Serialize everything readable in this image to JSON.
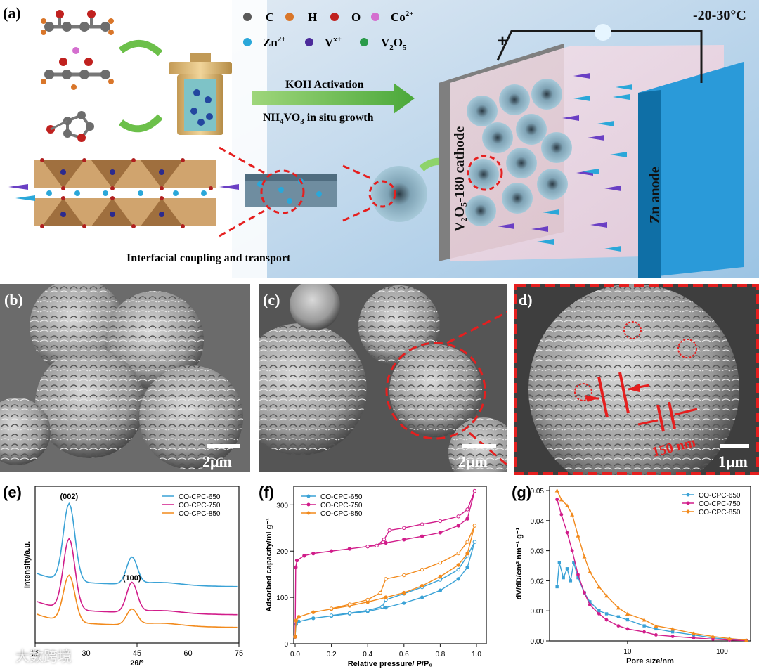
{
  "panel_a": {
    "label": "(a)",
    "temperature": "-20-30°C",
    "legend": {
      "C": "C",
      "H": "H",
      "O": "O",
      "Co": "Co",
      "Co_sup": "2+",
      "Zn": "Zn",
      "Zn_sup": "2+",
      "V": "V",
      "V_sup": "x+",
      "V2O5_a": "V",
      "V2O5_sub1": "2",
      "V2O5_b": "O",
      "V2O5_sub2": "5"
    },
    "arrow_text_1": "KOH Activation",
    "arrow_text_2a": "NH",
    "arrow_text_2_sub1": "4",
    "arrow_text_2b": "VO",
    "arrow_text_2_sub2": "3",
    "arrow_text_2c": " in situ growth",
    "cathode_label": "V₂O₅-180 cathode",
    "anode_label": "Zn anode",
    "plus_sign": "+",
    "caption": "Interfacial coupling and transport",
    "colors": {
      "C": "#5a5a5a",
      "H": "#d9762a",
      "O": "#c0211f",
      "Co": "#d46fcf",
      "Zn": "#2aa7d9",
      "V": "#4b2a9a",
      "V2O5": "#2a9a4a"
    }
  },
  "panel_b": {
    "label": "(b)",
    "scale": "2μm"
  },
  "panel_c": {
    "label": "(c)",
    "scale": "2μm"
  },
  "panel_d": {
    "label": "d)",
    "scale": "1μm",
    "measure": "150 nm"
  },
  "chart_data": [
    {
      "panel": "(e)",
      "type": "line",
      "xlabel": "2θ/°",
      "ylabel": "Intensity/a.u.",
      "xlim": [
        15,
        75
      ],
      "xticks": [
        "15",
        "30",
        "45",
        "60",
        "75"
      ],
      "annotations": [
        "(002)",
        "(100)"
      ],
      "legend_position": "top-right",
      "series": [
        {
          "name": "CO-CPC-650",
          "color": "#3aa2d6"
        },
        {
          "name": "CO-CPC-750",
          "color": "#d11c8a"
        },
        {
          "name": "CO-CPC-850",
          "color": "#f28a1c"
        }
      ],
      "peaks": {
        "002_x": 25,
        "100_x": 43.5
      }
    },
    {
      "panel": "(f)",
      "type": "line",
      "xlabel": "Relative pressure/ P/P₀",
      "ylabel": "Adsorbed capacity/ml g⁻¹",
      "xlim": [
        0,
        1.0
      ],
      "ylim": [
        0,
        340
      ],
      "xticks": [
        "0.0",
        "0.2",
        "0.4",
        "0.6",
        "0.8",
        "1.0"
      ],
      "yticks": [
        "0",
        "100",
        "200",
        "300"
      ],
      "legend_position": "top-left",
      "series": [
        {
          "name": "CO-CPC-650",
          "color": "#3aa2d6",
          "adsorption": [
            [
              0,
              15
            ],
            [
              0.005,
              42
            ],
            [
              0.02,
              48
            ],
            [
              0.1,
              55
            ],
            [
              0.2,
              60
            ],
            [
              0.3,
              65
            ],
            [
              0.4,
              70
            ],
            [
              0.5,
              78
            ],
            [
              0.6,
              88
            ],
            [
              0.7,
              100
            ],
            [
              0.8,
              115
            ],
            [
              0.9,
              140
            ],
            [
              0.95,
              165
            ],
            [
              0.99,
              220
            ]
          ],
          "desorption": [
            [
              0.99,
              220
            ],
            [
              0.95,
              190
            ],
            [
              0.9,
              160
            ],
            [
              0.8,
              138
            ],
            [
              0.7,
              122
            ],
            [
              0.6,
              108
            ],
            [
              0.5,
              95
            ],
            [
              0.48,
              80
            ],
            [
              0.4,
              72
            ],
            [
              0.3,
              66
            ],
            [
              0.2,
              61
            ]
          ]
        },
        {
          "name": "CO-CPC-750",
          "color": "#d11c8a",
          "adsorption": [
            [
              0,
              15
            ],
            [
              0.003,
              165
            ],
            [
              0.01,
              180
            ],
            [
              0.05,
              190
            ],
            [
              0.1,
              195
            ],
            [
              0.2,
              200
            ],
            [
              0.3,
              205
            ],
            [
              0.4,
              210
            ],
            [
              0.5,
              218
            ],
            [
              0.6,
              225
            ],
            [
              0.7,
              232
            ],
            [
              0.8,
              240
            ],
            [
              0.9,
              255
            ],
            [
              0.95,
              270
            ],
            [
              0.99,
              330
            ]
          ],
          "desorption": [
            [
              0.99,
              330
            ],
            [
              0.95,
              290
            ],
            [
              0.9,
              275
            ],
            [
              0.8,
              265
            ],
            [
              0.7,
              258
            ],
            [
              0.6,
              250
            ],
            [
              0.52,
              245
            ],
            [
              0.49,
              225
            ],
            [
              0.45,
              212
            ],
            [
              0.4,
              210
            ]
          ]
        },
        {
          "name": "CO-CPC-850",
          "color": "#f28a1c",
          "adsorption": [
            [
              0,
              15
            ],
            [
              0.005,
              50
            ],
            [
              0.02,
              58
            ],
            [
              0.1,
              68
            ],
            [
              0.2,
              75
            ],
            [
              0.3,
              82
            ],
            [
              0.4,
              90
            ],
            [
              0.5,
              100
            ],
            [
              0.6,
              110
            ],
            [
              0.7,
              125
            ],
            [
              0.8,
              145
            ],
            [
              0.9,
              170
            ],
            [
              0.95,
              195
            ],
            [
              0.99,
              255
            ]
          ],
          "desorption": [
            [
              0.99,
              255
            ],
            [
              0.95,
              220
            ],
            [
              0.9,
              195
            ],
            [
              0.8,
              175
            ],
            [
              0.7,
              160
            ],
            [
              0.6,
              148
            ],
            [
              0.5,
              140
            ],
            [
              0.47,
              110
            ],
            [
              0.4,
              95
            ],
            [
              0.3,
              85
            ],
            [
              0.2,
              76
            ]
          ]
        }
      ]
    },
    {
      "panel": "(g)",
      "type": "line",
      "xscale": "log",
      "xlabel": "Pore size/nm",
      "ylabel": "dV/dD/cm³ nm⁻¹ g⁻¹",
      "xlim": [
        1.5,
        200
      ],
      "ylim": [
        0,
        0.05
      ],
      "xticks": [
        "10",
        "100"
      ],
      "yticks": [
        "0.00",
        "0.01",
        "0.02",
        "0.03",
        "0.04",
        "0.05"
      ],
      "legend_position": "top-right",
      "series": [
        {
          "name": "CO-CPC-650",
          "color": "#3aa2d6",
          "points": [
            [
              1.8,
              0.018
            ],
            [
              1.9,
              0.026
            ],
            [
              2.1,
              0.021
            ],
            [
              2.3,
              0.024
            ],
            [
              2.5,
              0.02
            ],
            [
              2.7,
              0.026
            ],
            [
              3,
              0.021
            ],
            [
              3.5,
              0.016
            ],
            [
              4,
              0.013
            ],
            [
              5,
              0.01
            ],
            [
              6,
              0.009
            ],
            [
              8,
              0.008
            ],
            [
              10,
              0.007
            ],
            [
              15,
              0.005
            ],
            [
              20,
              0.004
            ],
            [
              30,
              0.003
            ],
            [
              50,
              0.002
            ],
            [
              80,
              0.001
            ],
            [
              120,
              0.0005
            ],
            [
              180,
              0.0002
            ]
          ]
        },
        {
          "name": "CO-CPC-750",
          "color": "#d11c8a",
          "points": [
            [
              1.8,
              0.047
            ],
            [
              2,
              0.042
            ],
            [
              2.3,
              0.036
            ],
            [
              2.6,
              0.03
            ],
            [
              3,
              0.022
            ],
            [
              3.5,
              0.016
            ],
            [
              4,
              0.012
            ],
            [
              5,
              0.009
            ],
            [
              6,
              0.007
            ],
            [
              8,
              0.005
            ],
            [
              10,
              0.004
            ],
            [
              15,
              0.003
            ],
            [
              20,
              0.002
            ],
            [
              30,
              0.0015
            ],
            [
              50,
              0.001
            ],
            [
              80,
              0.0006
            ],
            [
              120,
              0.0003
            ],
            [
              180,
              0.0001
            ]
          ]
        },
        {
          "name": "CO-CPC-850",
          "color": "#f28a1c",
          "points": [
            [
              1.8,
              0.05
            ],
            [
              2,
              0.047
            ],
            [
              2.3,
              0.045
            ],
            [
              2.6,
              0.042
            ],
            [
              3,
              0.035
            ],
            [
              3.5,
              0.028
            ],
            [
              4,
              0.023
            ],
            [
              5,
              0.018
            ],
            [
              6,
              0.015
            ],
            [
              8,
              0.011
            ],
            [
              10,
              0.009
            ],
            [
              15,
              0.007
            ],
            [
              20,
              0.005
            ],
            [
              30,
              0.004
            ],
            [
              50,
              0.0025
            ],
            [
              80,
              0.0015
            ],
            [
              120,
              0.0008
            ],
            [
              180,
              0.0003
            ]
          ]
        }
      ]
    }
  ],
  "watermark": "大数跨境"
}
